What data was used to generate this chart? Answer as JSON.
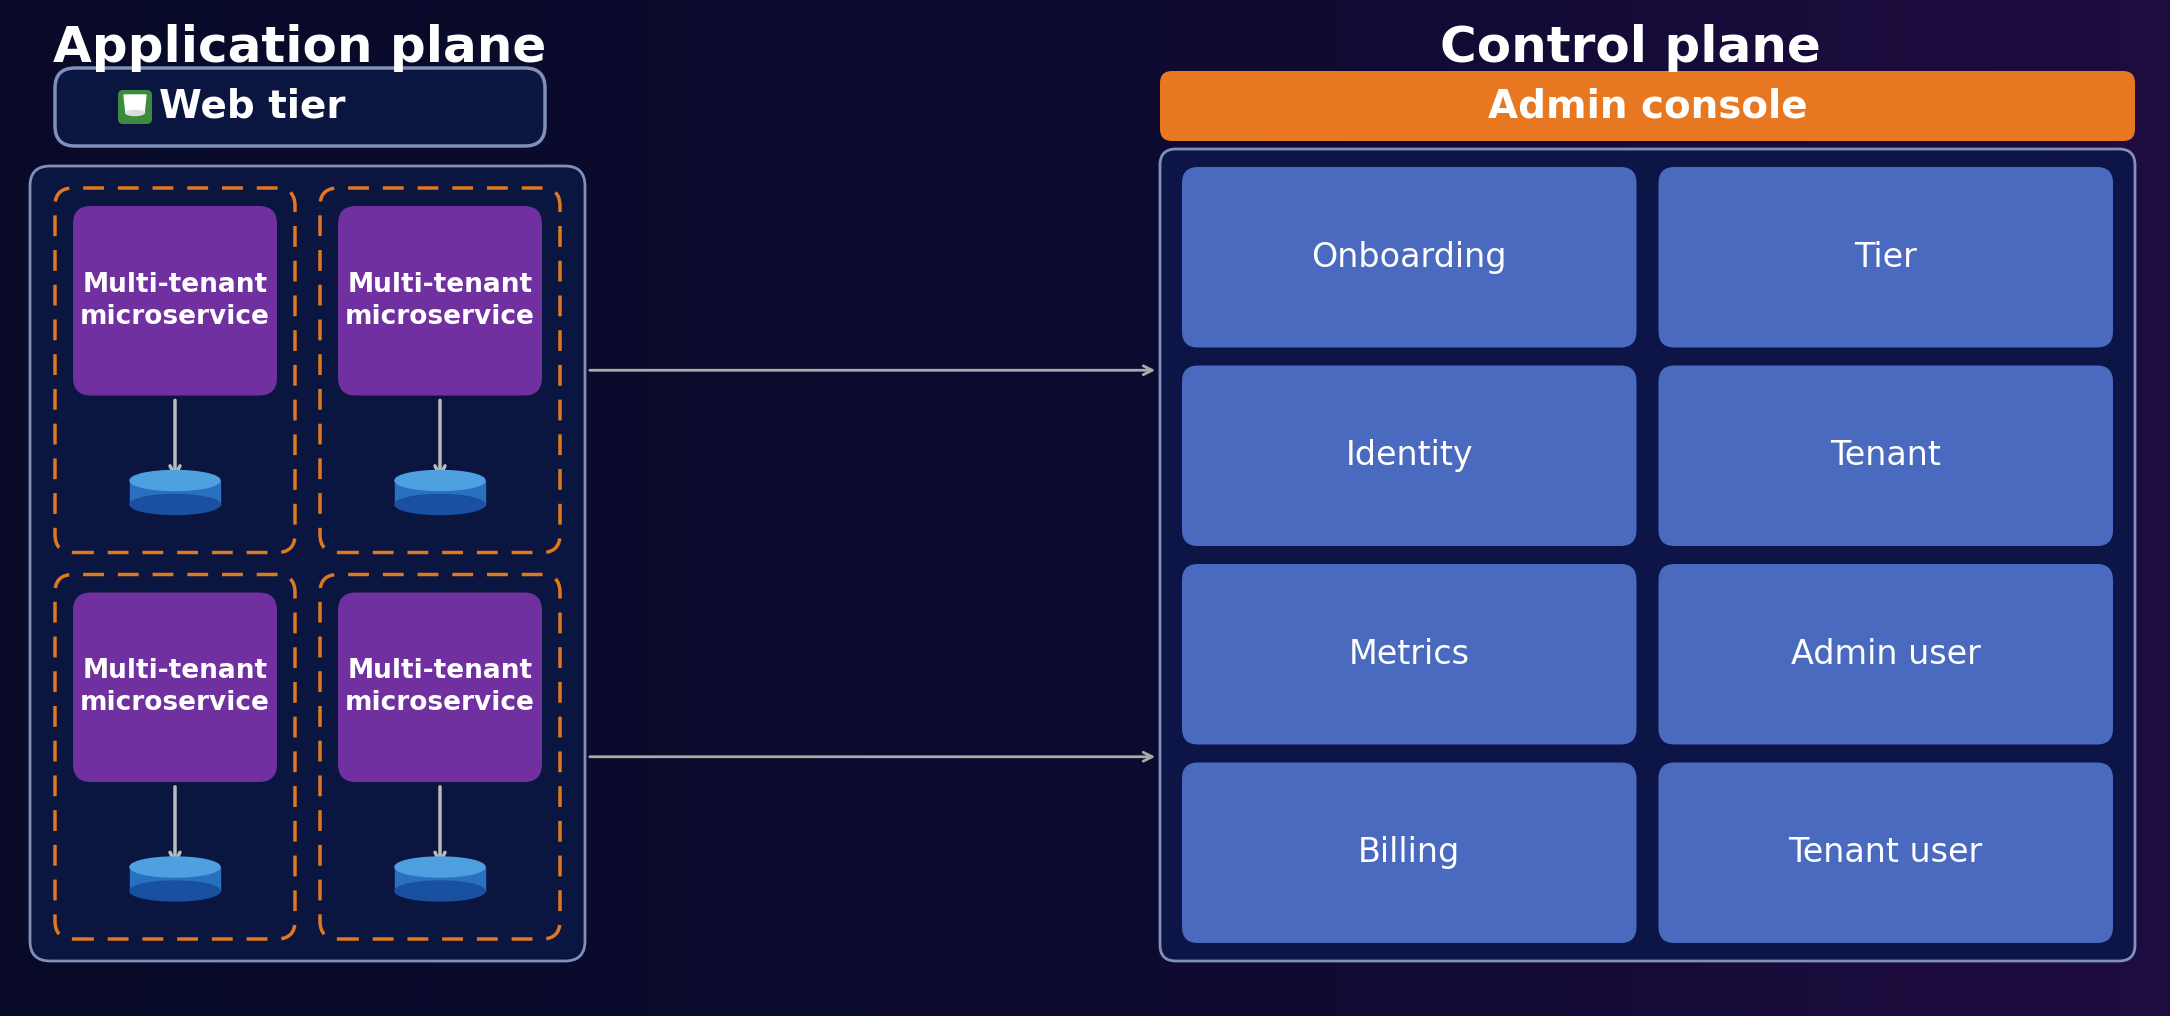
{
  "fig_width": 21.7,
  "fig_height": 10.16,
  "title_left": "Application plane",
  "title_right": "Control plane",
  "title_color": "#ffffff",
  "title_fontsize": 36,
  "web_tier_label": "Web tier",
  "web_tier_box_color": "#0d1b4b",
  "web_tier_border_color": "#8090b8",
  "web_tier_text_color": "#ffffff",
  "web_tier_icon_color": "#3d8c3d",
  "ms_label": "Multi-tenant\nmicroservice",
  "ms_box_color": "#7030a0",
  "ms_text_color": "#ffffff",
  "dashed_box_color": "#e07820",
  "outer_box_color": "#0d1b4b",
  "outer_box_border_color": "#8090b8",
  "admin_console_label": "Admin console",
  "admin_console_color": "#e87722",
  "admin_console_text_color": "#ffffff",
  "control_box_color": "#0d1b4b",
  "control_box_border_color": "#8090b8",
  "control_items": [
    [
      "Onboarding",
      "Tier"
    ],
    [
      "Identity",
      "Tenant"
    ],
    [
      "Metrics",
      "Admin user"
    ],
    [
      "Billing",
      "Tenant user"
    ]
  ],
  "control_item_color": "#4a6abf",
  "control_item_text_color": "#ffffff",
  "db_color_top": "#4fa0e0",
  "db_color_body": "#2a70c0",
  "db_color_shadow": "#1a50a0",
  "arrow_color": "#bbbbbb"
}
